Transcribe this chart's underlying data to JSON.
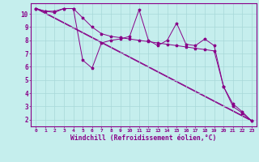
{
  "xlabel": "Windchill (Refroidissement éolien,°C)",
  "background_color": "#c5eeed",
  "line_color": "#880088",
  "grid_color": "#a8d8d8",
  "xlim": [
    -0.5,
    23.5
  ],
  "ylim": [
    1.5,
    10.8
  ],
  "yticks": [
    2,
    3,
    4,
    5,
    6,
    7,
    8,
    9,
    10
  ],
  "xticks": [
    0,
    1,
    2,
    3,
    4,
    5,
    6,
    7,
    8,
    9,
    10,
    11,
    12,
    13,
    14,
    15,
    16,
    17,
    18,
    19,
    20,
    21,
    22,
    23
  ],
  "line1_x": [
    0,
    1,
    2,
    3,
    4,
    5,
    6,
    7,
    8,
    9,
    10,
    11,
    12,
    13,
    14,
    15,
    16,
    17,
    18,
    19,
    20,
    21,
    22,
    23
  ],
  "line1_y": [
    10.4,
    10.2,
    10.1,
    10.4,
    10.4,
    6.5,
    5.9,
    7.8,
    8.0,
    8.1,
    8.3,
    10.3,
    8.0,
    7.6,
    8.0,
    9.3,
    7.7,
    7.6,
    8.1,
    7.6,
    4.5,
    3.0,
    2.5,
    1.9
  ],
  "line2_x": [
    0,
    1,
    2,
    3,
    4,
    5,
    6,
    7,
    8,
    9,
    10,
    11,
    12,
    13,
    14,
    15,
    16,
    17,
    18,
    19,
    20,
    21,
    22,
    23
  ],
  "line2_y": [
    10.4,
    10.2,
    10.2,
    10.4,
    10.4,
    9.7,
    9.0,
    8.5,
    8.3,
    8.2,
    8.1,
    8.0,
    7.9,
    7.8,
    7.7,
    7.6,
    7.5,
    7.4,
    7.3,
    7.2,
    4.5,
    3.2,
    2.6,
    1.9
  ],
  "line3_x": [
    0,
    23
  ],
  "line3_y": [
    10.4,
    1.9
  ],
  "line4_x": [
    0,
    23
  ],
  "line4_y": [
    10.4,
    1.9
  ]
}
